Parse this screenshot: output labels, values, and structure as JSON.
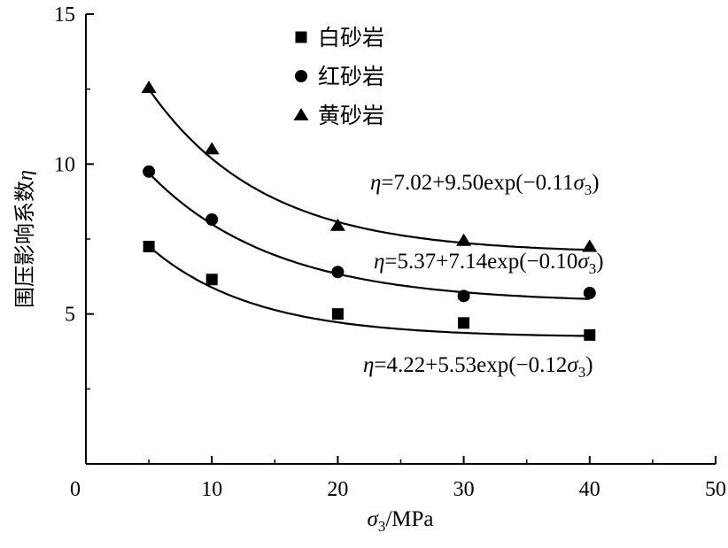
{
  "chart_data": {
    "type": "scatter",
    "xlabel": "σ3/MPa",
    "ylabel": "围压影响系数η",
    "xlim": [
      0,
      50
    ],
    "ylim": [
      0,
      15
    ],
    "x_ticks": [
      "0",
      "10",
      "20",
      "30",
      "40",
      "50"
    ],
    "y_ticks": [
      "5",
      "10",
      "15"
    ],
    "legend_position": "top-center",
    "series": [
      {
        "name": "白砂岩",
        "marker": "square",
        "x": [
          5,
          10,
          20,
          30,
          40
        ],
        "y": [
          7.25,
          6.15,
          5.0,
          4.7,
          4.3
        ],
        "fit": {
          "a": 4.22,
          "b": 5.53,
          "c": 0.12
        },
        "equation": "η=4.22+5.53exp(−0.12σ3)"
      },
      {
        "name": "红砂岩",
        "marker": "circle",
        "x": [
          5,
          10,
          20,
          30,
          40
        ],
        "y": [
          9.75,
          8.15,
          6.4,
          5.6,
          5.7
        ],
        "fit": {
          "a": 5.37,
          "b": 7.14,
          "c": 0.1
        },
        "equation": "η=5.37+7.14exp(−0.10σ3)"
      },
      {
        "name": "黄砂岩",
        "marker": "triangle",
        "x": [
          5,
          10,
          20,
          30,
          40
        ],
        "y": [
          12.55,
          10.5,
          7.95,
          7.45,
          7.25
        ],
        "fit": {
          "a": 7.02,
          "b": 9.5,
          "c": 0.11
        },
        "equation": "η=7.02+9.50exp(−0.11σ3)"
      }
    ]
  },
  "colors": {
    "ink": "#000000",
    "background": "#ffffff"
  }
}
